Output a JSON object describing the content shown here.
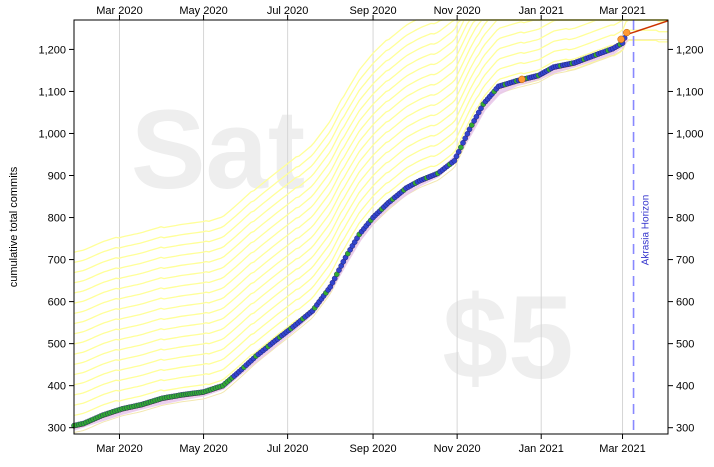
{
  "chart_data": {
    "type": "line",
    "title": "",
    "ylabel": "cumulative total commits",
    "xlabel": "",
    "watermarks": {
      "day": "Sat",
      "amount": "$5"
    },
    "horizon_label": "Akrasia Horizon",
    "x_ticks": [
      {
        "date": "2020-03-01",
        "label": "Mar 2020"
      },
      {
        "date": "2020-05-01",
        "label": "May 2020"
      },
      {
        "date": "2020-07-01",
        "label": "Jul 2020"
      },
      {
        "date": "2020-09-01",
        "label": "Sep 2020"
      },
      {
        "date": "2020-11-01",
        "label": "Nov 2020"
      },
      {
        "date": "2021-01-01",
        "label": "Jan 2021"
      },
      {
        "date": "2021-03-01",
        "label": "Mar 2021"
      }
    ],
    "y_ticks": [
      300,
      400,
      500,
      600,
      700,
      800,
      900,
      1000,
      1100,
      1200
    ],
    "y_tick_labels": [
      "300",
      "400",
      "500",
      "600",
      "700",
      "800",
      "900",
      "1,000",
      "1,100",
      "1,200"
    ],
    "xlim": [
      "2020-01-28",
      "2021-04-03"
    ],
    "ylim": [
      285,
      1270
    ],
    "horizon_date": "2021-03-09",
    "grid": "vertical",
    "colors": {
      "bright_road": "#ffff99",
      "road_line": "#cc3300",
      "trend": "#e8c6ec",
      "data_point": "#3344cc",
      "derail_point": "#33aa33",
      "horizon": "#8888ff",
      "watermark": "#eeeeee",
      "aura": "#ff9933"
    },
    "series": [
      {
        "name": "",
        "x": [
          "2020-01-28",
          "2020-02-04",
          "2020-02-18",
          "2020-03-03",
          "2020-03-17",
          "2020-04-01",
          "2020-04-15",
          "2020-05-01",
          "2020-05-15",
          "2020-05-25",
          "2020-06-08",
          "2020-06-22",
          "2020-07-05",
          "2020-07-19",
          "2020-08-01",
          "2020-08-12",
          "2020-08-22",
          "2020-09-01",
          "2020-09-12",
          "2020-09-25",
          "2020-10-05",
          "2020-10-18",
          "2020-10-30",
          "2020-11-10",
          "2020-11-20",
          "2020-12-01",
          "2020-12-14",
          "2020-12-30",
          "2021-01-10",
          "2021-01-25",
          "2021-02-08",
          "2021-02-22",
          "2021-03-01",
          "2021-03-04"
        ],
        "values": [
          305,
          310,
          330,
          345,
          355,
          370,
          378,
          385,
          400,
          428,
          470,
          507,
          540,
          578,
          635,
          705,
          760,
          800,
          835,
          870,
          888,
          905,
          935,
          1010,
          1070,
          1112,
          1125,
          1138,
          1158,
          1168,
          1185,
          1202,
          1215,
          1240
        ]
      }
    ]
  }
}
